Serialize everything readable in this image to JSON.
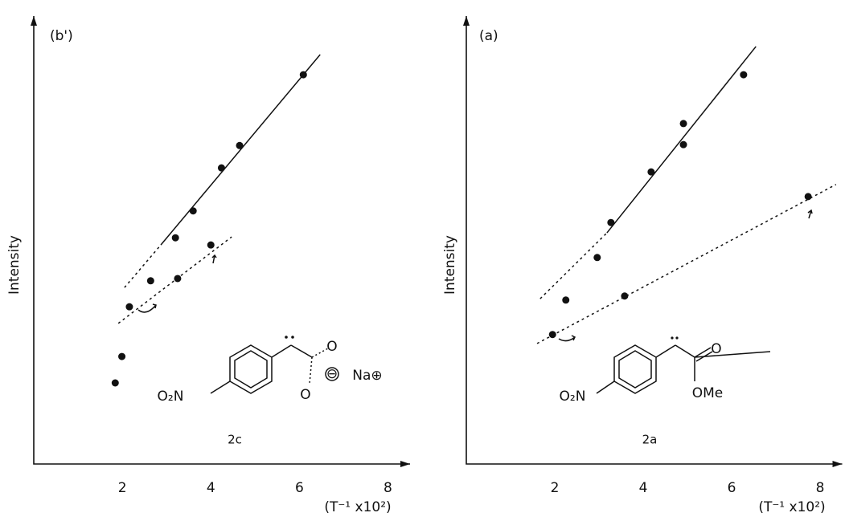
{
  "chart_data": [
    {
      "type": "scatter",
      "title": "(b')",
      "x_label": "(T⁻¹ x10²)",
      "y_label": "Intensity",
      "compound": "2c",
      "structure_labels": [
        "O₂N",
        "O",
        "O",
        "⊖",
        "Na⊕"
      ],
      "color": "#111111",
      "xlim": [
        0,
        8.5
      ],
      "ylim": [
        0,
        10
      ],
      "xticks": [
        2,
        4,
        6,
        8
      ],
      "x": [
        1.84,
        1.99,
        2.16,
        2.64,
        3.2,
        3.25,
        3.6,
        4.0,
        4.24,
        4.65,
        6.09
      ],
      "values": [
        1.81,
        2.4,
        3.51,
        4.09,
        5.05,
        4.14,
        5.65,
        4.89,
        6.61,
        7.11,
        8.69
      ],
      "fits": [
        {
          "style": "solid",
          "x": [
            2.87,
            6.47
          ],
          "y": [
            4.89,
            9.14
          ]
        },
        {
          "style": "dotted",
          "x": [
            2.05,
            2.87
          ],
          "y": [
            3.94,
            4.89
          ]
        },
        {
          "style": "dotted",
          "x": [
            1.91,
            4.47
          ],
          "y": [
            3.14,
            5.07
          ]
        }
      ]
    },
    {
      "type": "scatter",
      "title": "(a)",
      "x_label": "(T⁻¹ x10²)",
      "y_label": "Intensity",
      "compound": "2a",
      "structure_labels": [
        "O₂N",
        "O",
        "OMe"
      ],
      "color": "#111111",
      "xlim": [
        0,
        8.5
      ],
      "ylim": [
        0,
        10
      ],
      "xticks": [
        2,
        4,
        6,
        8
      ],
      "x": [
        1.95,
        2.25,
        2.96,
        3.27,
        3.58,
        4.18,
        4.91,
        4.91,
        6.27,
        7.73
      ],
      "values": [
        2.89,
        3.66,
        4.61,
        5.39,
        3.75,
        6.52,
        7.6,
        7.13,
        8.69,
        5.97
      ],
      "fits": [
        {
          "style": "solid",
          "x": [
            3.18,
            6.55
          ],
          "y": [
            5.16,
            9.32
          ]
        },
        {
          "style": "dotted",
          "x": [
            1.67,
            3.18
          ],
          "y": [
            3.69,
            5.16
          ]
        },
        {
          "style": "dotted",
          "x": [
            1.6,
            8.36
          ],
          "y": [
            2.69,
            6.24
          ]
        }
      ]
    }
  ]
}
